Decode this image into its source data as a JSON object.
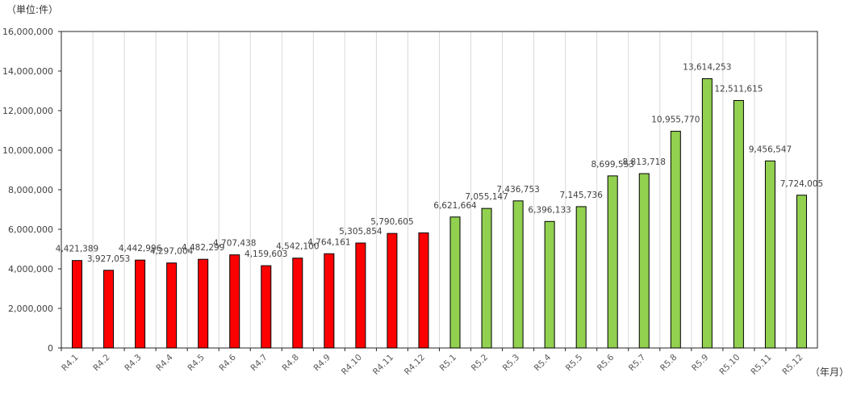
{
  "chart_data": {
    "type": "bar",
    "y_unit_label": "（単位:件）",
    "x_unit_label": "（年月）",
    "categories": [
      "R4.1",
      "R4.2",
      "R4.3",
      "R4.4",
      "R4.5",
      "R4.6",
      "R4.7",
      "R4.8",
      "R4.9",
      "R4.10",
      "R4.11",
      "R4.12",
      "R5.1",
      "R5.2",
      "R5.3",
      "R5.4",
      "R5.5",
      "R5.6",
      "R5.7",
      "R5.8",
      "R5.9",
      "R5.10",
      "R5.11",
      "R5.12"
    ],
    "values": [
      4421389,
      3927053,
      4442996,
      4297004,
      4482299,
      4707438,
      4159603,
      4542100,
      4764161,
      5305854,
      5790605,
      5819247,
      6621664,
      7055147,
      7436753,
      6396133,
      7145736,
      8699553,
      8813718,
      10955770,
      13614253,
      12511615,
      9456547,
      7724005
    ],
    "value_labels": [
      "4,421,389",
      "3,927,053",
      "4,442,996",
      "4,297,004",
      "4,482,299",
      "4,707,438",
      "4,159,603",
      "4,542,100",
      "4,764,161",
      "5,305,854",
      "5,790,605",
      "",
      "6,621,664",
      "7,055,147",
      "7,436,753",
      "6,396,133",
      "7,145,736",
      "8,699,553",
      "8,813,718",
      "10,955,770",
      "13,614,253",
      "12,511,615",
      "9,456,547",
      "7,724,005"
    ],
    "bar_colors": [
      "#ff0000",
      "#ff0000",
      "#ff0000",
      "#ff0000",
      "#ff0000",
      "#ff0000",
      "#ff0000",
      "#ff0000",
      "#ff0000",
      "#ff0000",
      "#ff0000",
      "#ff0000",
      "#92d050",
      "#92d050",
      "#92d050",
      "#92d050",
      "#92d050",
      "#92d050",
      "#92d050",
      "#92d050",
      "#92d050",
      "#92d050",
      "#92d050",
      "#92d050"
    ],
    "ylim": [
      0,
      16000000
    ],
    "yticks": [
      "0",
      "2,000,000",
      "4,000,000",
      "6,000,000",
      "8,000,000",
      "10,000,000",
      "12,000,000",
      "14,000,000",
      "16,000,000"
    ],
    "grid": "vertical",
    "legend": "none"
  }
}
